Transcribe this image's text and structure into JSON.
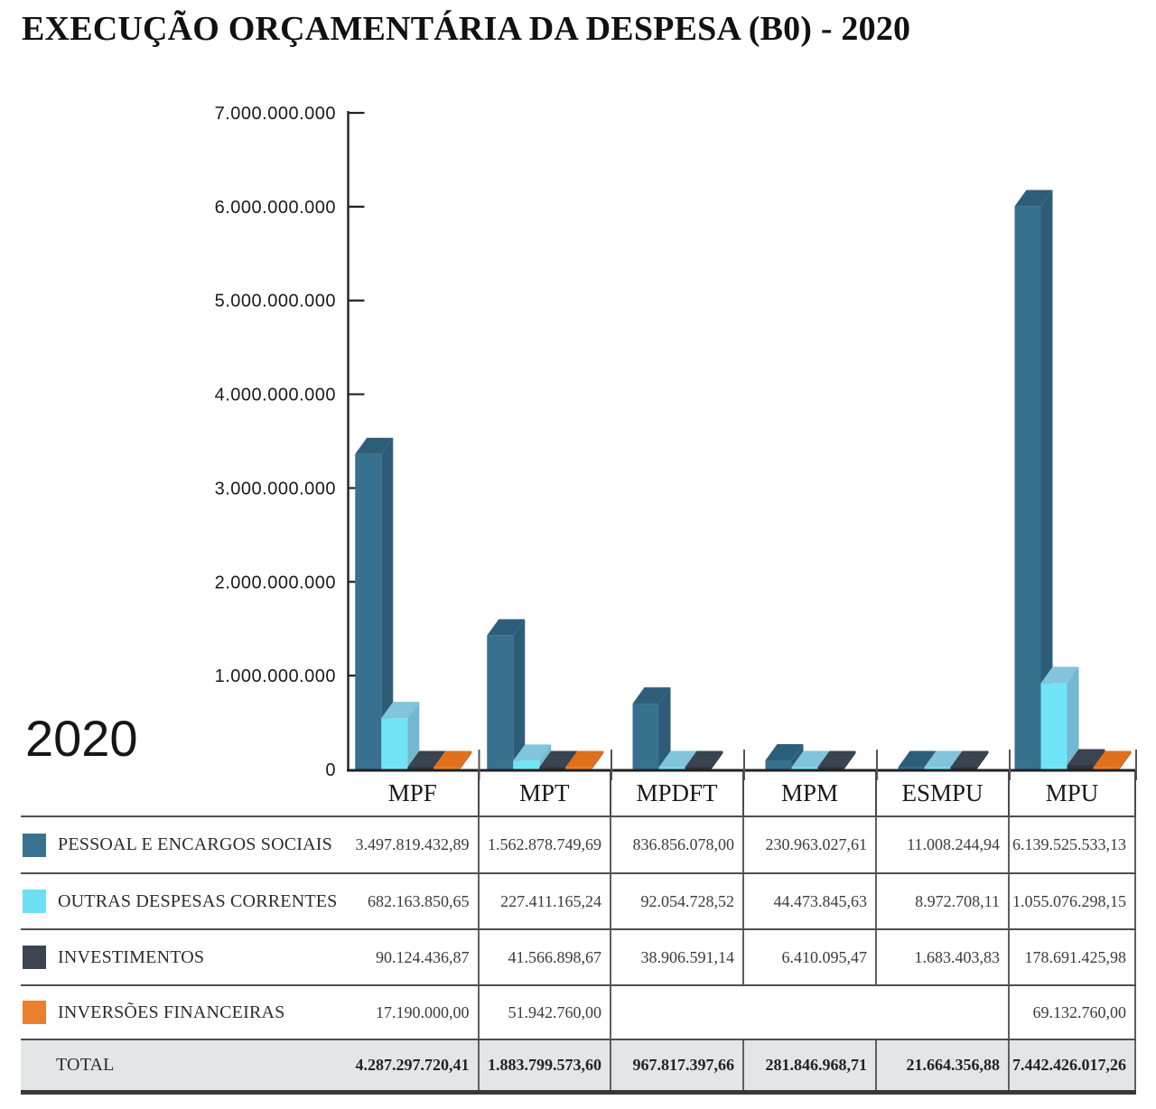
{
  "title": "EXECUÇÃO ORÇAMENTÁRIA DA DESPESA (B0) - 2020",
  "year_label": "2020",
  "chart_data": {
    "type": "bar",
    "style": "3d-grouped-columns",
    "title": "EXECUÇÃO ORÇAMENTÁRIA DA DESPESA (B0) - 2020",
    "categories": [
      "MPF",
      "MPT",
      "MPDFT",
      "MPM",
      "ESMPU",
      "MPU"
    ],
    "y_axis": {
      "ticks": [
        "7.000.000.000",
        "6.000.000.000",
        "5.000.000.000",
        "4.000.000.000",
        "3.000.000.000",
        "2.000.000.000",
        "1.000.000.000",
        "0"
      ],
      "min": 0,
      "max": 7000000000,
      "grid": false
    },
    "legend_position": "table-left-column",
    "series": [
      {
        "name": "PESSOAL E ENCARGOS SOCIAIS",
        "swatch": "#3A7090",
        "front": "#38708F",
        "top": "#2D5E79",
        "side": "#2C5C77",
        "values": [
          3497819432.89,
          1562878749.69,
          836856078.0,
          230963027.61,
          11008244.94,
          6139525533.13
        ],
        "cell_labels": [
          "3.497.819.432,89",
          "1.562.878.749,69",
          "836.856.078,00",
          "230.963.027,61",
          "11.008.244,94",
          "6.139.525.533,13"
        ]
      },
      {
        "name": "OUTRAS DESPESAS CORRENTES",
        "swatch": "#6EDFF2",
        "front": "#70E4F5",
        "top": "#82C4DB",
        "side": "#74B7D0",
        "values": [
          682163850.65,
          227411165.24,
          92054728.52,
          44473845.63,
          8972708.11,
          1055076298.15
        ],
        "cell_labels": [
          "682.163.850,65",
          "227.411.165,24",
          "92.054.728,52",
          "44.473.845,63",
          "8.972.708,11",
          "1.055.076.298,15"
        ]
      },
      {
        "name": "INVESTIMENTOS",
        "swatch": "#3C4551",
        "front": "#2D3440",
        "top": "#3A4350",
        "side": "#2A303B",
        "values": [
          90124436.87,
          41566898.67,
          38906591.14,
          6410095.47,
          1683403.83,
          178691425.98
        ],
        "cell_labels": [
          "90.124.436,87",
          "41.566.898,67",
          "38.906.591,14",
          "6.410.095,47",
          "1.683.403,83",
          "178.691.425,98"
        ]
      },
      {
        "name": "INVERSÕES FINANCEIRAS",
        "swatch": "#E8802E",
        "front": "#EE8426",
        "top": "#DF701C",
        "side": "#C45D12",
        "values": [
          17190000.0,
          51942760.0,
          null,
          null,
          null,
          69132760.0
        ],
        "cell_labels": [
          "17.190.000,00",
          "51.942.760,00",
          "",
          "",
          "",
          "69.132.760,00"
        ]
      }
    ],
    "total_row": {
      "label": "TOTAL",
      "cell_labels": [
        "4.287.297.720,41",
        "1.883.799.573,60",
        "967.817.397,66",
        "281.846.968,71",
        "21.664.356,88",
        "7.442.426.017,26"
      ]
    }
  }
}
